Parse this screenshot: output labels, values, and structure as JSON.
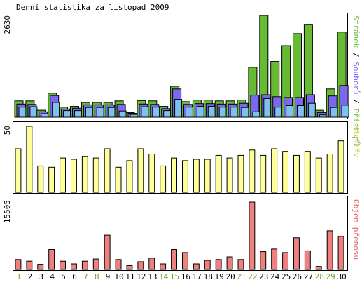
{
  "chart_data": [
    {
      "type": "bar",
      "title": "Denní statistika za listopad 2009",
      "ylabel_max": "2630",
      "categories": [
        "1",
        "2",
        "3",
        "4",
        "5",
        "6",
        "7",
        "8",
        "9",
        "10",
        "11",
        "12",
        "13",
        "14",
        "15",
        "16",
        "17",
        "18",
        "19",
        "20",
        "21",
        "22",
        "23",
        "24",
        "25",
        "26",
        "27",
        "28",
        "29",
        "30"
      ],
      "weekend_days": [
        "1",
        "7",
        "8",
        "14",
        "15",
        "21",
        "22",
        "28",
        "29"
      ],
      "legend": {
        "pristupu": "Přístupů",
        "souboru": "Souborů",
        "stranek": "Stránek",
        "sep1": " / ",
        "sep2": " / "
      },
      "ylim": [
        0,
        2630
      ],
      "series": [
        {
          "name": "Přístupů",
          "color": "#66bb33",
          "values": [
            420,
            420,
            180,
            620,
            260,
            280,
            380,
            380,
            380,
            420,
            120,
            430,
            420,
            280,
            800,
            400,
            440,
            440,
            420,
            420,
            440,
            1290,
            2630,
            1440,
            1850,
            2160,
            2400,
            180,
            730,
            2200
          ]
        },
        {
          "name": "Souborů",
          "color": "#7b68ee",
          "values": [
            340,
            330,
            140,
            560,
            210,
            230,
            320,
            320,
            320,
            330,
            100,
            340,
            330,
            220,
            730,
            330,
            350,
            350,
            340,
            340,
            360,
            570,
            580,
            530,
            510,
            510,
            580,
            120,
            550,
            820
          ]
        },
        {
          "name": "Stránek",
          "color": "#7ec0ee",
          "values": [
            260,
            270,
            90,
            380,
            170,
            170,
            250,
            250,
            250,
            160,
            70,
            270,
            260,
            170,
            460,
            260,
            280,
            280,
            260,
            260,
            250,
            140,
            480,
            260,
            300,
            300,
            360,
            60,
            250,
            310
          ]
        }
      ]
    },
    {
      "type": "bar",
      "ylabel_max": "50",
      "legend": "Návštěv",
      "ylim": [
        0,
        50
      ],
      "series": [
        {
          "name": "Návštěv",
          "color": "#ffff99",
          "values": [
            33,
            50,
            20,
            19,
            26,
            25,
            27,
            26,
            33,
            19,
            24,
            33,
            29,
            20,
            26,
            24,
            25,
            25,
            28,
            26,
            28,
            32,
            28,
            33,
            31,
            28,
            31,
            26,
            29,
            39
          ]
        }
      ]
    },
    {
      "type": "bar",
      "ylabel_max": "15505",
      "legend": "Objem přenosu",
      "ylim": [
        0,
        15505
      ],
      "series": [
        {
          "name": "Objem přenosu",
          "color": "#f08080",
          "values": [
            2300,
            1900,
            1200,
            4600,
            1900,
            1300,
            1900,
            2400,
            7900,
            2300,
            900,
            1800,
            2600,
            1300,
            4600,
            3900,
            1300,
            2100,
            2300,
            2900,
            2300,
            15505,
            4100,
            4700,
            3900,
            7300,
            4300,
            700,
            8900,
            7600
          ]
        }
      ]
    }
  ]
}
